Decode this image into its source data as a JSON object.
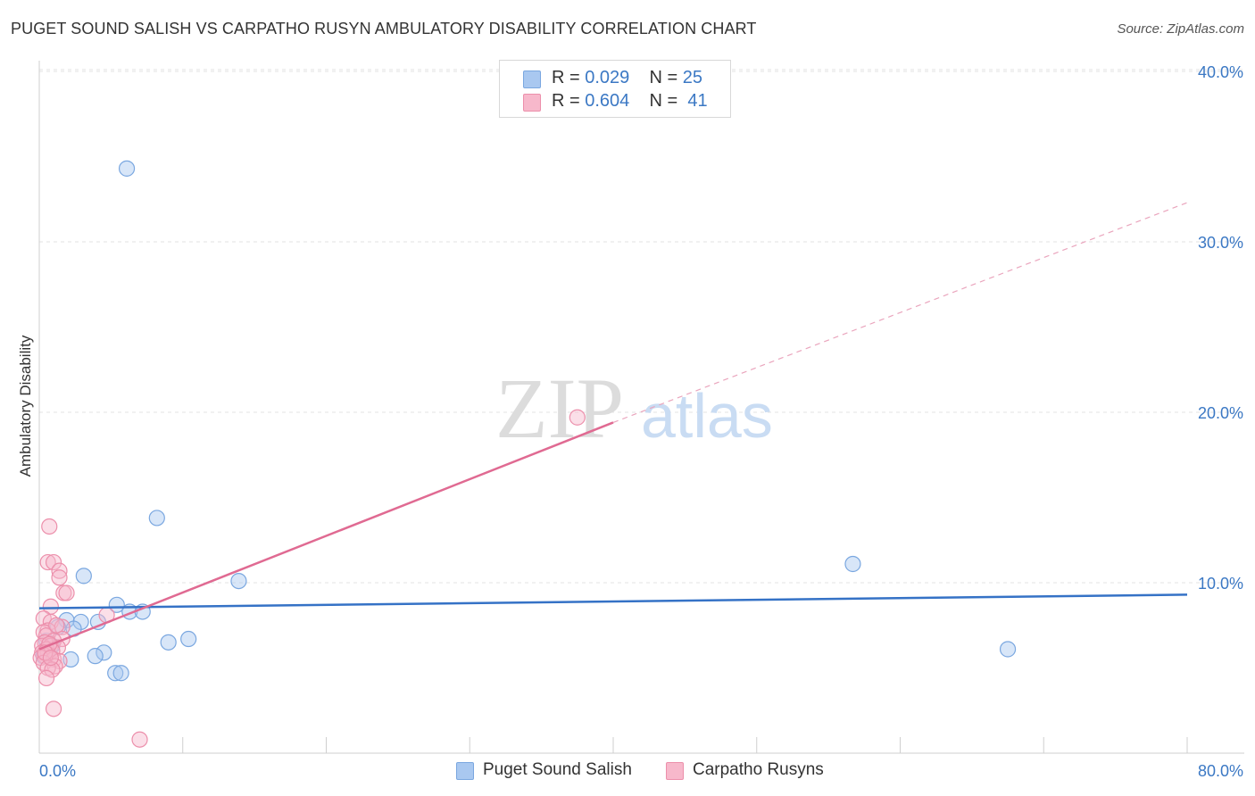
{
  "title": "PUGET SOUND SALISH VS CARPATHO RUSYN AMBULATORY DISABILITY CORRELATION CHART",
  "source": "Source: ZipAtlas.com",
  "watermark": {
    "zip": "ZIP",
    "atlas": "atlas"
  },
  "legend": {
    "rows": [
      {
        "r_label": "R =",
        "r_value": "0.029",
        "n_label": "N =",
        "n_value": "25",
        "color": "#a9c8f0",
        "border": "#7aa7e0"
      },
      {
        "r_label": "R =",
        "r_value": "0.604",
        "n_label": "N =",
        "n_value": "41",
        "color": "#f7b8cb",
        "border": "#ec8fab"
      }
    ]
  },
  "bottom_legend": [
    {
      "label": "Puget Sound Salish",
      "color": "#a9c8f0",
      "border": "#7aa7e0"
    },
    {
      "label": "Carpatho Rusyns",
      "color": "#f7b8cb",
      "border": "#ec8fab"
    }
  ],
  "colors": {
    "blue_line": "#3572c6",
    "pink_line": "#e06a92",
    "axis_text": "#3b78c4",
    "grid": "#e3e3e3"
  },
  "chart_data": {
    "type": "scatter",
    "ylabel": "Ambulatory Disability",
    "xlim": [
      0,
      80
    ],
    "ylim": [
      0,
      40
    ],
    "x_tick_labels": [
      "0.0%",
      "80.0%"
    ],
    "y_ticks": [
      10,
      20,
      30,
      40
    ],
    "y_tick_labels": [
      "10.0%",
      "20.0%",
      "30.0%",
      "40.0%"
    ],
    "grid": "horizontal dashed",
    "series": [
      {
        "name": "Puget Sound Salish",
        "points": [
          [
            6.1,
            34.3
          ],
          [
            8.2,
            13.8
          ],
          [
            56.7,
            11.1
          ],
          [
            3.1,
            10.4
          ],
          [
            13.9,
            10.1
          ],
          [
            5.4,
            8.7
          ],
          [
            6.3,
            8.3
          ],
          [
            7.2,
            8.3
          ],
          [
            1.9,
            7.8
          ],
          [
            2.9,
            7.7
          ],
          [
            4.1,
            7.7
          ],
          [
            1.3,
            7.4
          ],
          [
            2.4,
            7.3
          ],
          [
            10.4,
            6.7
          ],
          [
            9.0,
            6.5
          ],
          [
            0.9,
            6.3
          ],
          [
            0.6,
            6.0
          ],
          [
            0.3,
            5.7
          ],
          [
            4.5,
            5.9
          ],
          [
            3.9,
            5.7
          ],
          [
            2.2,
            5.5
          ],
          [
            67.5,
            6.1
          ],
          [
            5.3,
            4.7
          ],
          [
            5.7,
            4.7
          ],
          [
            0.5,
            6.6
          ]
        ],
        "trend": {
          "x": [
            0,
            80
          ],
          "y": [
            8.5,
            9.3
          ]
        }
      },
      {
        "name": "Carpatho Rusyns",
        "points": [
          [
            0.7,
            13.3
          ],
          [
            0.6,
            11.2
          ],
          [
            1.0,
            11.2
          ],
          [
            1.4,
            10.7
          ],
          [
            1.4,
            10.3
          ],
          [
            1.7,
            9.4
          ],
          [
            1.9,
            9.4
          ],
          [
            0.8,
            8.6
          ],
          [
            0.3,
            7.9
          ],
          [
            0.8,
            7.7
          ],
          [
            1.6,
            7.4
          ],
          [
            0.6,
            7.2
          ],
          [
            0.3,
            7.1
          ],
          [
            0.5,
            6.9
          ],
          [
            1.6,
            6.7
          ],
          [
            1.0,
            6.6
          ],
          [
            0.4,
            6.5
          ],
          [
            0.2,
            6.3
          ],
          [
            0.8,
            6.3
          ],
          [
            1.3,
            6.2
          ],
          [
            0.5,
            6.1
          ],
          [
            0.9,
            6.0
          ],
          [
            0.2,
            5.9
          ],
          [
            0.6,
            5.8
          ],
          [
            0.4,
            5.7
          ],
          [
            0.1,
            5.6
          ],
          [
            1.0,
            5.5
          ],
          [
            1.4,
            5.4
          ],
          [
            0.3,
            5.3
          ],
          [
            1.1,
            5.1
          ],
          [
            0.6,
            5.0
          ],
          [
            0.9,
            4.9
          ],
          [
            0.5,
            4.4
          ],
          [
            1.0,
            2.6
          ],
          [
            4.7,
            8.1
          ],
          [
            37.5,
            19.7
          ],
          [
            7.0,
            0.8
          ],
          [
            0.7,
            6.4
          ],
          [
            1.2,
            7.5
          ],
          [
            0.4,
            5.9
          ],
          [
            0.8,
            5.6
          ]
        ],
        "trend": {
          "x": [
            0,
            40
          ],
          "y": [
            6.1,
            19.4
          ]
        },
        "trend_dashed": {
          "x": [
            40,
            80
          ],
          "y": [
            19.4,
            32.3
          ]
        }
      }
    ]
  }
}
